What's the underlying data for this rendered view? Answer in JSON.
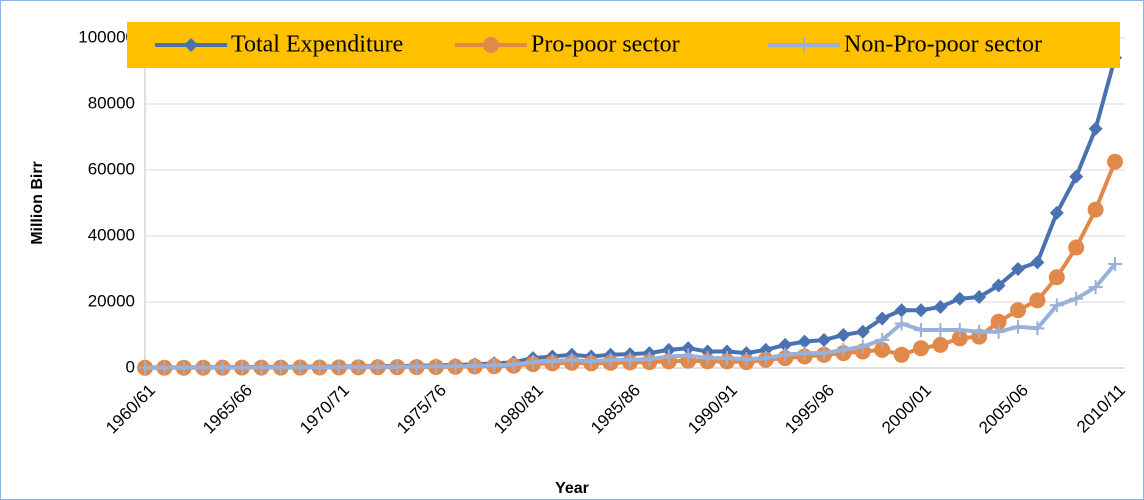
{
  "chart_data": {
    "type": "line",
    "xlabel": "Year",
    "ylabel": "Million Birr",
    "categories": [
      "1960/61",
      null,
      null,
      null,
      null,
      "1965/66",
      null,
      null,
      null,
      null,
      "1970/71",
      null,
      null,
      null,
      null,
      "1975/76",
      null,
      null,
      null,
      null,
      "1980/81",
      null,
      null,
      null,
      null,
      "1985/86",
      null,
      null,
      null,
      null,
      "1990/91",
      null,
      null,
      null,
      null,
      "1995/96",
      null,
      null,
      null,
      null,
      "2000/01",
      null,
      null,
      null,
      null,
      "2005/06",
      null,
      null,
      null,
      null,
      "2010/11"
    ],
    "series": [
      {
        "name": "Total Expenditure",
        "color": "#4a72b0",
        "marker": "diamond",
        "values": [
          150,
          180,
          200,
          230,
          250,
          280,
          300,
          330,
          360,
          400,
          450,
          500,
          550,
          620,
          700,
          800,
          900,
          1100,
          1400,
          1700,
          3000,
          3500,
          4000,
          3500,
          4000,
          4200,
          4500,
          5500,
          6000,
          5000,
          5000,
          4500,
          5500,
          7000,
          8000,
          8500,
          10000,
          11000,
          15000,
          17500,
          17500,
          18500,
          21000,
          21500,
          25000,
          30000,
          32000,
          47000,
          58000,
          72500,
          94000
        ]
      },
      {
        "name": "Pro-poor sector",
        "color": "#e0894a",
        "marker": "circle",
        "values": [
          60,
          70,
          80,
          90,
          100,
          110,
          120,
          130,
          140,
          160,
          180,
          200,
          220,
          250,
          280,
          320,
          360,
          450,
          550,
          700,
          1200,
          1400,
          1600,
          1400,
          1600,
          1700,
          1800,
          2000,
          2200,
          2000,
          2000,
          1800,
          2500,
          3000,
          3500,
          4000,
          4500,
          5000,
          5500,
          4000,
          6000,
          7000,
          9000,
          9500,
          14000,
          17500,
          20500,
          27500,
          36500,
          48000,
          62500
        ]
      },
      {
        "name": "Non-Pro-poor sector",
        "color": "#9ab0d8",
        "marker": "plus",
        "values": [
          90,
          110,
          120,
          140,
          150,
          170,
          180,
          200,
          220,
          240,
          270,
          300,
          330,
          370,
          420,
          480,
          540,
          650,
          850,
          1000,
          1800,
          2100,
          2400,
          2100,
          2400,
          2500,
          2700,
          3500,
          3800,
          3000,
          3000,
          2700,
          3000,
          4000,
          4500,
          4500,
          5500,
          6500,
          8500,
          13500,
          11500,
          11500,
          11500,
          11000,
          11000,
          12500,
          12000,
          19000,
          21000,
          24500,
          31500
        ]
      }
    ],
    "ylim": [
      0,
      100000
    ],
    "yticks": [
      0,
      20000,
      40000,
      60000,
      80000,
      100000
    ],
    "grid": true,
    "legend": "top",
    "legend_background": "#ffc000"
  }
}
